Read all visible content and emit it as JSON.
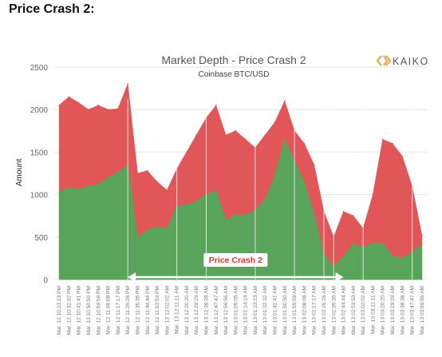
{
  "page": {
    "heading": "Price Crash 2:"
  },
  "brand": {
    "logo_text": "KAIKO",
    "logo_color": "#f2a64a"
  },
  "chart_data": {
    "type": "area",
    "title": "Market Depth - Price Crash 2",
    "subtitle": "Coinbase BTC/USD",
    "xlabel": "",
    "ylabel": "Amount",
    "ylim": [
      0,
      2500
    ],
    "yticks": [
      0,
      500,
      1000,
      1500,
      2000,
      2500
    ],
    "grid": {
      "horizontal": true,
      "vertical": false
    },
    "colors": {
      "bids": "#5aa35a",
      "asks": "#e15759"
    },
    "annotation": {
      "label": "Price Crash 2",
      "from": "Mar. 12 11:26:26 PM",
      "to": "Mar. 13 02:44:44 AM"
    },
    "categories": [
      "Mar. 12 10:23:23 PM",
      "Mar. 12 10:32:32 PM",
      "Mar. 12 10:41:41 PM",
      "Mar. 12 10:50:50 PM",
      "Mar. 12 10:59:59 PM",
      "Mar. 12 11:08:08 PM",
      "Mar. 12 11:17:17 PM",
      "Mar. 12 11:26:26 PM",
      "Mar. 12 11:35:35 PM",
      "Mar. 12 11:44:44 PM",
      "Mar. 12 11:53:53 PM",
      "Mar. 13 12:02:02 AM",
      "Mar. 13 12:11:11 AM",
      "Mar. 13 12:20:20 AM",
      "Mar. 13 12:29:29 AM",
      "Mar. 13 12:38:38 AM",
      "Mar. 13 12:47:47 AM",
      "Mar. 13 12:56:56 AM",
      "Mar. 13 01:05:05 AM",
      "Mar. 13 01:14:14 AM",
      "Mar. 13 01:23:23 AM",
      "Mar. 13 01:32:32 AM",
      "Mar. 13 01:41:41 AM",
      "Mar. 13 01:50:50 AM",
      "Mar. 13 01:59:59 AM",
      "Mar. 13 02:08:08 AM",
      "Mar. 13 02:17:17 AM",
      "Mar. 13 02:26:26 AM",
      "Mar. 13 02:35:35 AM",
      "Mar. 13 02:44:44 AM",
      "Mar. 13 02:53:53 AM",
      "Mar. 13 03:02:02 AM",
      "Mar. 13 03:11:11 AM",
      "Mar. 13 03:20:20 AM",
      "Mar. 13 03:29:29 AM",
      "Mar. 13 03:38:38 AM",
      "Mar. 13 03:47:47 AM",
      "Mar. 13 03:56:56 AM"
    ],
    "series": [
      {
        "name": "",
        "color": "#5aa35a",
        "values": [
          1030,
          1080,
          1060,
          1100,
          1120,
          1200,
          1260,
          1350,
          500,
          580,
          620,
          600,
          860,
          880,
          920,
          1000,
          1050,
          700,
          760,
          760,
          820,
          940,
          1220,
          1650,
          1400,
          1150,
          780,
          300,
          150,
          270,
          420,
          380,
          430,
          430,
          280,
          250,
          320,
          420
        ]
      },
      {
        "name": "",
        "color": "#e15759",
        "values": [
          2050,
          2150,
          2080,
          2000,
          2050,
          2000,
          2010,
          2300,
          1250,
          1280,
          1150,
          1050,
          1300,
          1500,
          1700,
          1900,
          2050,
          1700,
          1750,
          1650,
          1550,
          1700,
          1850,
          2100,
          1750,
          1600,
          1350,
          800,
          500,
          800,
          750,
          600,
          1000,
          1650,
          1600,
          1450,
          1100,
          520
        ]
      }
    ]
  }
}
